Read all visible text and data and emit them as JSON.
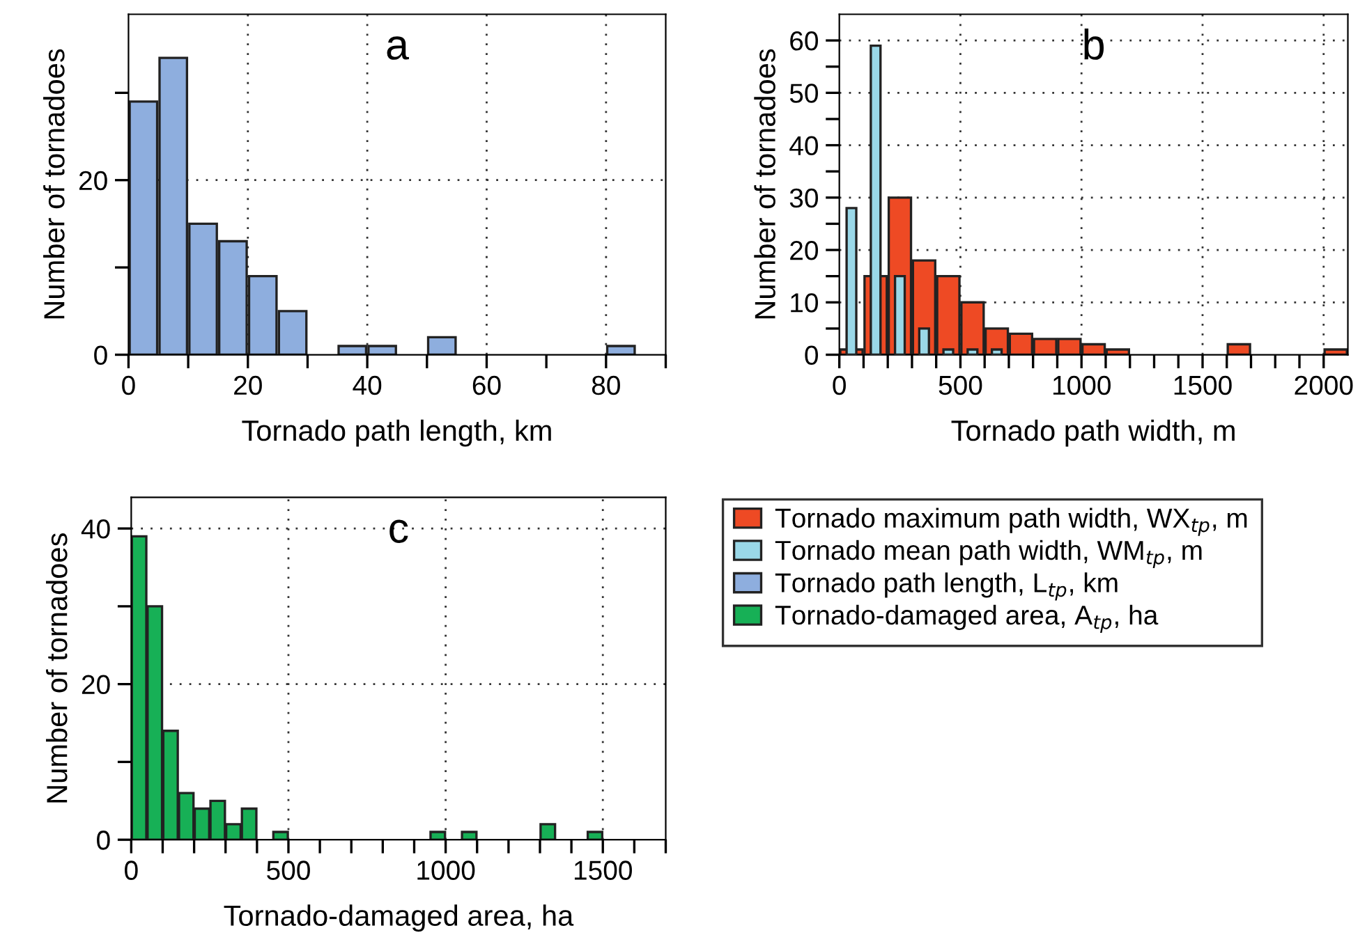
{
  "chart_data": [
    {
      "type": "histogram",
      "title": "a",
      "xlabel": "Tornado path length, km",
      "ylabel": "Number of tornadoes",
      "bins": [
        0,
        5,
        10,
        15,
        20,
        25,
        30,
        35,
        40,
        45,
        50,
        55,
        60,
        65,
        70,
        75,
        80,
        85
      ],
      "series": [
        {
          "name": "Tornado path length, L$_{tp}$, km",
          "color": "#8eaede",
          "values": [
            29,
            34,
            15,
            13,
            9,
            5,
            0,
            1,
            1,
            0,
            2,
            0,
            0,
            0,
            0,
            0,
            1
          ]
        }
      ],
      "xlim": [
        0,
        90
      ],
      "xticks": [
        0,
        {
          "value": 10,
          "label": null
        },
        20,
        {
          "value": 30,
          "label": null
        },
        40,
        {
          "value": 50,
          "label": null
        },
        60,
        {
          "value": 70,
          "label": null
        },
        80,
        {
          "value": 90,
          "label": null
        }
      ],
      "ylim": [
        0,
        39
      ],
      "yticks": [
        0,
        {
          "value": 10,
          "label": null
        },
        20,
        {
          "value": 30,
          "label": null
        }
      ],
      "grid": true,
      "legend": "bottom right"
    },
    {
      "type": "histogram",
      "title": "b",
      "xlabel": "Tornado path width, m",
      "ylabel": "Number of tornadoes",
      "bins": [
        0,
        100,
        200,
        300,
        400,
        500,
        600,
        700,
        800,
        900,
        1000,
        1100,
        1200,
        1300,
        1400,
        1500,
        1600,
        1700,
        1800,
        1900,
        2000,
        2100
      ],
      "series": [
        {
          "name": "Tornado maximum path width, WX$_{tp}$, m",
          "color": "#ee4a24",
          "values": [
            1,
            15,
            30,
            18,
            15,
            10,
            5,
            4,
            3,
            3,
            2,
            1,
            0,
            0,
            0,
            0,
            2,
            0,
            0,
            0,
            1
          ]
        },
        {
          "name": "Tornado mean path width, WM$_{tp}$, m",
          "color": "#9ad8e8",
          "values": [
            28,
            59,
            15,
            5,
            1,
            1,
            1,
            0,
            0,
            0,
            0,
            0,
            0,
            0,
            0,
            0,
            0,
            0,
            0,
            0,
            0
          ]
        }
      ],
      "xlim": [
        0,
        2100
      ],
      "xticks": [
        0,
        {
          "value": 100,
          "label": null
        },
        {
          "value": 200,
          "label": null
        },
        {
          "value": 300,
          "label": null
        },
        {
          "value": 400,
          "label": null
        },
        500,
        {
          "value": 600,
          "label": null
        },
        {
          "value": 700,
          "label": null
        },
        {
          "value": 800,
          "label": null
        },
        {
          "value": 900,
          "label": null
        },
        1000,
        {
          "value": 1100,
          "label": null
        },
        {
          "value": 1200,
          "label": null
        },
        {
          "value": 1300,
          "label": null
        },
        {
          "value": 1400,
          "label": null
        },
        1500,
        {
          "value": 1600,
          "label": null
        },
        {
          "value": 1700,
          "label": null
        },
        {
          "value": 1800,
          "label": null
        },
        {
          "value": 1900,
          "label": null
        },
        2000
      ],
      "ylim": [
        0,
        65
      ],
      "yticks": [
        0,
        {
          "value": 5,
          "label": null
        },
        10,
        {
          "value": 15,
          "label": null
        },
        20,
        {
          "value": 25,
          "label": null
        },
        30,
        {
          "value": 35,
          "label": null
        },
        40,
        {
          "value": 45,
          "label": null
        },
        50,
        {
          "value": 55,
          "label": null
        },
        60
      ],
      "grid": true,
      "legend": "bottom left"
    },
    {
      "type": "histogram",
      "title": "c",
      "xlabel": "Tornado-damaged area, ha",
      "ylabel": "Number of tornadoes",
      "bins": [
        0,
        50,
        100,
        150,
        200,
        250,
        300,
        350,
        400,
        450,
        500,
        550,
        600,
        650,
        700,
        750,
        800,
        850,
        900,
        950,
        1000,
        1050,
        1100,
        1150,
        1200,
        1250,
        1300,
        1350,
        1400,
        1450,
        1500
      ],
      "series": [
        {
          "name": "Tornado-damaged area, A$_{tp}$, ha",
          "color": "#17b056",
          "values": [
            39,
            30,
            14,
            6,
            4,
            5,
            2,
            4,
            0,
            1,
            0,
            0,
            0,
            0,
            0,
            0,
            0,
            0,
            0,
            1,
            0,
            1,
            0,
            0,
            0,
            0,
            2,
            0,
            0,
            1
          ]
        }
      ],
      "xlim": [
        0,
        1700
      ],
      "xticks": [
        0,
        {
          "value": 100,
          "label": null
        },
        {
          "value": 200,
          "label": null
        },
        {
          "value": 300,
          "label": null
        },
        {
          "value": 400,
          "label": null
        },
        500,
        {
          "value": 600,
          "label": null
        },
        {
          "value": 700,
          "label": null
        },
        {
          "value": 800,
          "label": null
        },
        {
          "value": 900,
          "label": null
        },
        1000,
        {
          "value": 1100,
          "label": null
        },
        {
          "value": 1200,
          "label": null
        },
        {
          "value": 1300,
          "label": null
        },
        {
          "value": 1400,
          "label": null
        },
        1500,
        {
          "value": 1600,
          "label": null
        },
        {
          "value": 1700,
          "label": null
        }
      ],
      "ylim": [
        0,
        44
      ],
      "yticks": [
        0,
        {
          "value": 10,
          "label": null
        },
        20,
        {
          "value": 30,
          "label": null
        },
        40
      ],
      "grid": true,
      "legend": "top right"
    }
  ]
}
